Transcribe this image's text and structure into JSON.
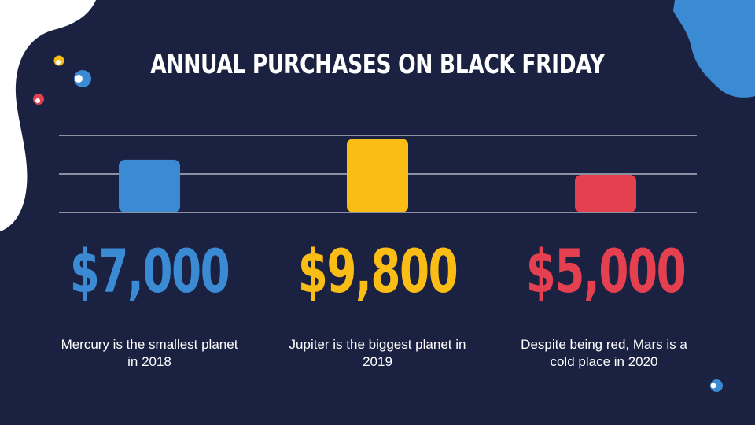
{
  "slide": {
    "title": "ANNUAL PURCHASES ON BLACK FRIDAY",
    "background_color": "#1b2140"
  },
  "chart_data": {
    "type": "bar",
    "categories": [
      "Mercury",
      "Jupiter",
      "Mars"
    ],
    "values": [
      7000,
      9800,
      5000
    ],
    "value_labels": [
      "$7,000",
      "$9,800",
      "$5,000"
    ],
    "descriptions": [
      "Mercury is the smallest planet in 2018",
      "Jupiter is the biggest planet in 2019",
      "Despite being red, Mars is a cold place in 2020"
    ],
    "colors": [
      "#3b8bd4",
      "#f9bd16",
      "#e5404f"
    ],
    "grid": true,
    "gridlines": 3
  }
}
